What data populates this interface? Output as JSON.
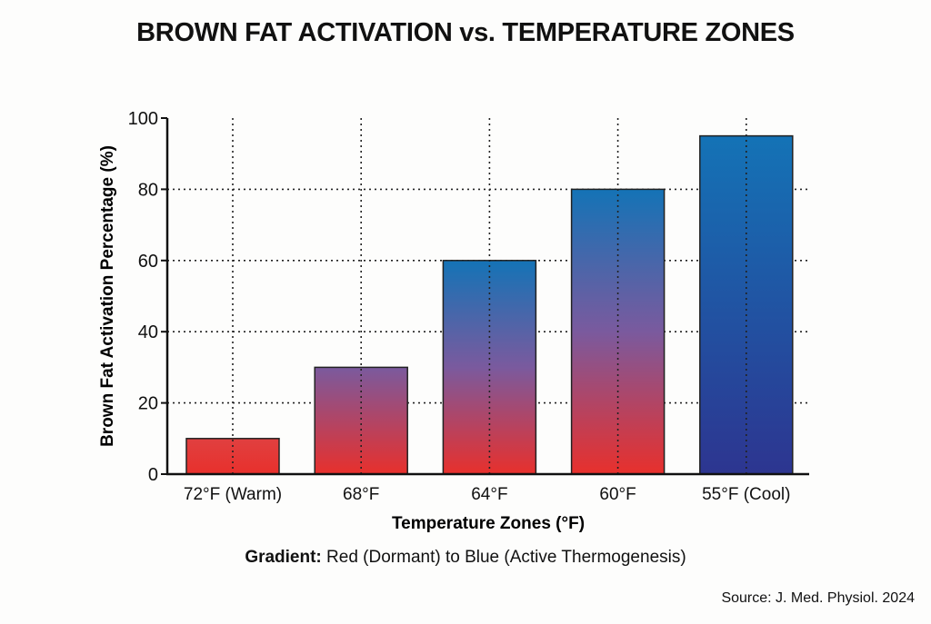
{
  "chart_data": {
    "type": "bar",
    "title": "BROWN FAT ACTIVATION vs. TEMPERATURE ZONES",
    "xlabel": "Temperature Zones (°F)",
    "ylabel": "Brown Fat Activation Percentage (%)",
    "categories": [
      "72°F (Warm)",
      "68°F",
      "64°F",
      "60°F",
      "55°F (Cool)"
    ],
    "values": [
      10,
      30,
      60,
      80,
      95
    ],
    "ylim": [
      0,
      100
    ],
    "yticks": [
      "0",
      "20",
      "40",
      "60",
      "80",
      "100"
    ],
    "grid": "dotted, both axes",
    "colors": {
      "red": "#e8302c",
      "purple": "#7a5a9e",
      "blue": "#1473b6",
      "deep_blue": "#2d3590"
    }
  },
  "gradient_note": {
    "label": "Gradient:",
    "text": "Red (Dormant) to Blue (Active Thermogenesis)"
  },
  "source": "Source: J. Med. Physiol. 2024"
}
